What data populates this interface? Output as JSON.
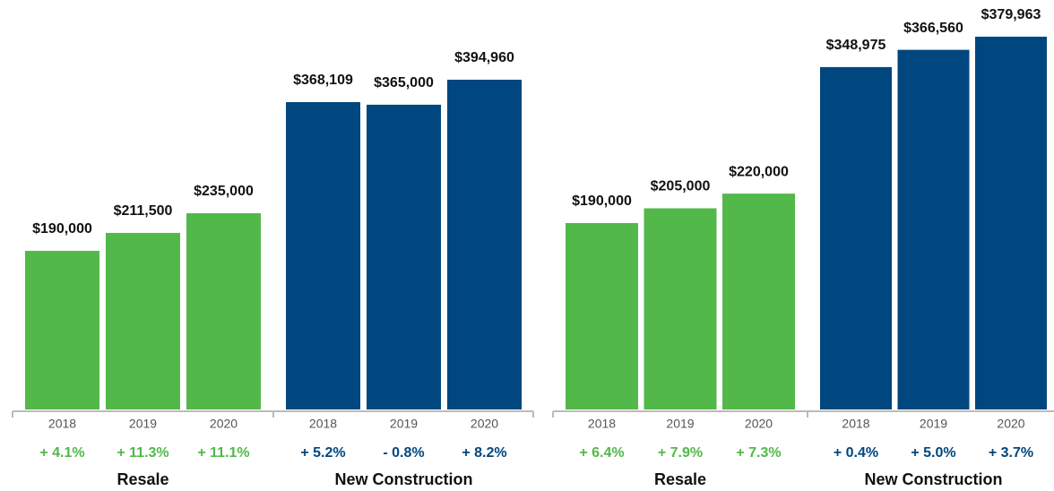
{
  "chart_data": [
    {
      "type": "bar",
      "ylim": [
        0,
        440000
      ],
      "groups": [
        {
          "name": "Resale",
          "color": "#52b84a",
          "categories": [
            "2018",
            "2019",
            "2020"
          ],
          "values": [
            190000,
            211500,
            235000
          ],
          "value_labels": [
            "$190,000",
            "$211,500",
            "$235,000"
          ],
          "changes": [
            "+ 4.1%",
            "+ 11.3%",
            "+ 11.1%"
          ]
        },
        {
          "name": "New Construction",
          "color": "#00467f",
          "categories": [
            "2018",
            "2019",
            "2020"
          ],
          "values": [
            368109,
            365000,
            394960
          ],
          "value_labels": [
            "$368,109",
            "$365,000",
            "$394,960"
          ],
          "changes": [
            "+ 5.2%",
            "- 0.8%",
            "+ 8.2%"
          ]
        }
      ]
    },
    {
      "type": "bar",
      "ylim": [
        0,
        400000
      ],
      "groups": [
        {
          "name": "Resale",
          "color": "#52b84a",
          "categories": [
            "2018",
            "2019",
            "2020"
          ],
          "values": [
            190000,
            205000,
            220000
          ],
          "value_labels": [
            "$190,000",
            "$205,000",
            "$220,000"
          ],
          "changes": [
            "+ 6.4%",
            "+ 7.9%",
            "+ 7.3%"
          ]
        },
        {
          "name": "New Construction",
          "color": "#00467f",
          "categories": [
            "2018",
            "2019",
            "2020"
          ],
          "values": [
            348975,
            366560,
            379963
          ],
          "value_labels": [
            "$348,975",
            "$366,560",
            "$379,963"
          ],
          "changes": [
            "+ 0.4%",
            "+ 5.0%",
            "+ 3.7%"
          ]
        }
      ]
    }
  ]
}
